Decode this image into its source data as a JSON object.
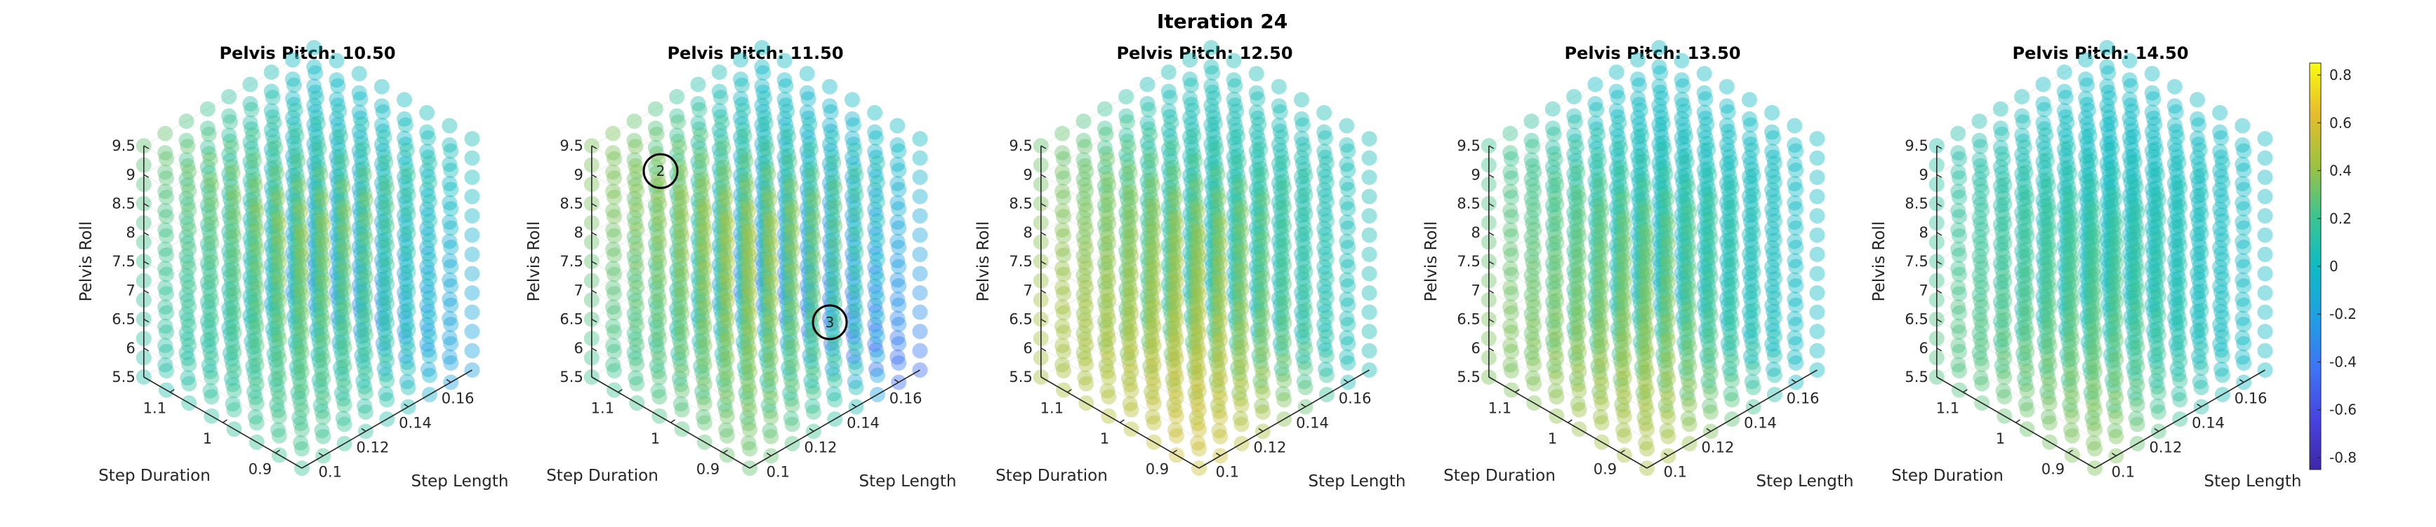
{
  "figure": {
    "title": "Iteration 24"
  },
  "chart_data": {
    "type": "scatter",
    "projection": "3d",
    "axes": {
      "x": {
        "label": "Step Length",
        "ticks": [
          "0.1",
          "0.12",
          "0.14",
          "0.16"
        ],
        "range": [
          0.09,
          0.17
        ]
      },
      "y": {
        "label": "Step Duration",
        "ticks": [
          "0.9",
          "1",
          "1.1"
        ],
        "range": [
          0.85,
          1.15
        ]
      },
      "z": {
        "label": "Pelvis Roll",
        "ticks": [
          "5.5",
          "6",
          "6.5",
          "7",
          "7.5",
          "8",
          "8.5",
          "9",
          "9.5"
        ],
        "range": [
          5.5,
          9.5
        ]
      }
    },
    "colorbar": {
      "ticks": [
        "0.8",
        "0.6",
        "0.4",
        "0.2",
        "0",
        "-0.2",
        "-0.4",
        "-0.6",
        "-0.8"
      ],
      "range": [
        -0.85,
        0.85
      ],
      "colormap": "parula",
      "colors": [
        "#3e26a8",
        "#4744e0",
        "#3d74f5",
        "#1fa0e2",
        "#0fbbc3",
        "#3ec48f",
        "#9ec23f",
        "#e6bc2e",
        "#f9fb0e"
      ]
    },
    "grid": {
      "step_length": [
        0.1,
        0.12,
        0.14,
        0.16
      ],
      "step_duration": [
        0.9,
        1.0,
        1.1
      ],
      "pelvis_roll": [
        5.5,
        6.5,
        7.5,
        8.5,
        9.5
      ]
    },
    "grid_note": "each subplot shows a dense lattice of translucent markers colored by the colorbar value",
    "subplots": [
      {
        "title": "Pelvis Pitch: 10.50",
        "pelvis_pitch": 10.5,
        "values": [
          [
            [
              0.2,
              0.25,
              0.3,
              0.35,
              0.4
            ],
            [
              0.15,
              0.2,
              0.25,
              0.3,
              0.35
            ],
            [
              0.1,
              0.15,
              0.2,
              0.25,
              0.3
            ]
          ],
          [
            [
              0.15,
              0.2,
              0.25,
              0.3,
              0.35
            ],
            [
              0.1,
              0.12,
              0.15,
              0.2,
              0.25
            ],
            [
              0.05,
              0.1,
              0.12,
              0.15,
              0.2
            ]
          ],
          [
            [
              0.05,
              0.1,
              0.1,
              0.15,
              0.2
            ],
            [
              0.0,
              0.05,
              0.1,
              0.1,
              0.15
            ],
            [
              0.0,
              0.0,
              0.05,
              0.1,
              0.1
            ]
          ],
          [
            [
              -0.2,
              -0.15,
              -0.1,
              0.0,
              0.05
            ],
            [
              -0.25,
              -0.2,
              -0.1,
              -0.05,
              0.0
            ],
            [
              -0.3,
              -0.2,
              -0.15,
              -0.05,
              0.0
            ]
          ]
        ]
      },
      {
        "title": "Pelvis Pitch: 11.50",
        "pelvis_pitch": 11.5,
        "annotations": [
          "2",
          "3"
        ],
        "values": [
          [
            [
              0.3,
              0.35,
              0.4,
              0.45,
              0.45
            ],
            [
              0.25,
              0.3,
              0.35,
              0.4,
              0.4
            ],
            [
              0.2,
              0.25,
              0.3,
              0.35,
              0.35
            ]
          ],
          [
            [
              0.2,
              0.25,
              0.3,
              0.35,
              0.35
            ],
            [
              0.15,
              0.2,
              0.25,
              0.3,
              0.3
            ],
            [
              0.1,
              0.15,
              0.2,
              0.25,
              0.25
            ]
          ],
          [
            [
              0.05,
              0.1,
              0.15,
              0.2,
              0.2
            ],
            [
              0.0,
              0.05,
              0.1,
              0.15,
              0.15
            ],
            [
              -0.05,
              0.0,
              0.05,
              0.1,
              0.1
            ]
          ],
          [
            [
              -0.45,
              -0.3,
              -0.2,
              -0.1,
              0.0
            ],
            [
              -0.4,
              -0.3,
              -0.2,
              -0.1,
              -0.05
            ],
            [
              -0.35,
              -0.25,
              -0.15,
              -0.05,
              0.0
            ]
          ]
        ]
      },
      {
        "title": "Pelvis Pitch: 12.50",
        "pelvis_pitch": 12.5,
        "values": [
          [
            [
              0.55,
              0.55,
              0.5,
              0.45,
              0.4
            ],
            [
              0.5,
              0.5,
              0.45,
              0.4,
              0.35
            ],
            [
              0.45,
              0.45,
              0.4,
              0.35,
              0.3
            ]
          ],
          [
            [
              0.45,
              0.4,
              0.35,
              0.3,
              0.3
            ],
            [
              0.4,
              0.35,
              0.3,
              0.25,
              0.25
            ],
            [
              0.35,
              0.3,
              0.25,
              0.2,
              0.2
            ]
          ],
          [
            [
              0.3,
              0.25,
              0.2,
              0.15,
              0.15
            ],
            [
              0.25,
              0.2,
              0.15,
              0.1,
              0.1
            ],
            [
              0.2,
              0.15,
              0.1,
              0.05,
              0.05
            ]
          ],
          [
            [
              0.05,
              0.05,
              0.05,
              0.05,
              0.05
            ],
            [
              0.0,
              0.0,
              0.05,
              0.05,
              0.05
            ],
            [
              -0.05,
              0.0,
              0.0,
              0.05,
              0.05
            ]
          ]
        ]
      },
      {
        "title": "Pelvis Pitch: 13.50",
        "pelvis_pitch": 13.5,
        "values": [
          [
            [
              0.45,
              0.45,
              0.4,
              0.35,
              0.3
            ],
            [
              0.4,
              0.4,
              0.35,
              0.3,
              0.25
            ],
            [
              0.35,
              0.35,
              0.3,
              0.25,
              0.2
            ]
          ],
          [
            [
              0.35,
              0.3,
              0.25,
              0.2,
              0.2
            ],
            [
              0.3,
              0.25,
              0.2,
              0.15,
              0.15
            ],
            [
              0.25,
              0.2,
              0.15,
              0.1,
              0.1
            ]
          ],
          [
            [
              0.2,
              0.15,
              0.1,
              0.1,
              0.05
            ],
            [
              0.15,
              0.1,
              0.05,
              0.05,
              0.05
            ],
            [
              0.1,
              0.05,
              0.0,
              0.0,
              0.0
            ]
          ],
          [
            [
              0.0,
              0.0,
              0.0,
              0.0,
              0.0
            ],
            [
              -0.05,
              0.0,
              0.0,
              0.0,
              0.0
            ],
            [
              -0.1,
              -0.05,
              0.0,
              0.0,
              0.0
            ]
          ]
        ]
      },
      {
        "title": "Pelvis Pitch: 14.50",
        "pelvis_pitch": 14.5,
        "values": [
          [
            [
              0.35,
              0.35,
              0.3,
              0.25,
              0.2
            ],
            [
              0.3,
              0.3,
              0.25,
              0.2,
              0.15
            ],
            [
              0.25,
              0.25,
              0.2,
              0.15,
              0.1
            ]
          ],
          [
            [
              0.25,
              0.2,
              0.2,
              0.15,
              0.1
            ],
            [
              0.2,
              0.15,
              0.15,
              0.1,
              0.1
            ],
            [
              0.15,
              0.1,
              0.1,
              0.05,
              0.05
            ]
          ],
          [
            [
              0.1,
              0.1,
              0.05,
              0.05,
              0.05
            ],
            [
              0.05,
              0.05,
              0.0,
              0.0,
              0.0
            ],
            [
              0.0,
              0.0,
              0.0,
              0.0,
              0.0
            ]
          ],
          [
            [
              0.0,
              0.0,
              0.0,
              0.0,
              0.0
            ],
            [
              0.0,
              0.0,
              0.0,
              0.0,
              0.0
            ],
            [
              0.0,
              0.0,
              0.0,
              0.0,
              0.0
            ]
          ]
        ]
      }
    ]
  }
}
